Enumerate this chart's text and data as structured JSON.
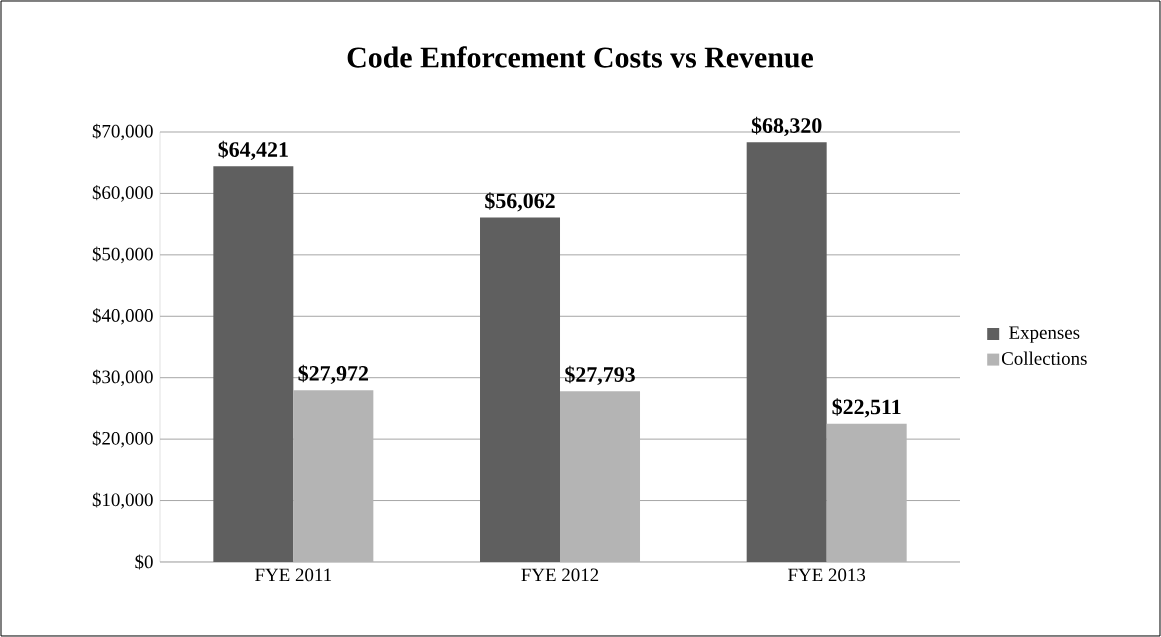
{
  "chart_data": {
    "type": "bar",
    "title": "Code Enforcement Costs vs Revenue",
    "categories": [
      "FYE 2011",
      "FYE 2012",
      "FYE 2013"
    ],
    "series": [
      {
        "name": "Expenses",
        "color": "#5f5f5f",
        "values": [
          64421,
          56062,
          68320
        ],
        "value_labels": [
          "$64,421",
          "$56,062",
          "$68,320"
        ]
      },
      {
        "name": "Collections",
        "color": "#b4b4b4",
        "values": [
          27972,
          27793,
          22511
        ],
        "value_labels": [
          "$27,972",
          "$27,793",
          "$22,511"
        ]
      }
    ],
    "ylim": [
      0,
      70000
    ],
    "yticks": [
      {
        "value": 0,
        "label": "$0"
      },
      {
        "value": 10000,
        "label": "$10,000"
      },
      {
        "value": 20000,
        "label": "$20,000"
      },
      {
        "value": 30000,
        "label": "$30,000"
      },
      {
        "value": 40000,
        "label": "$40,000"
      },
      {
        "value": 50000,
        "label": "$50,000"
      },
      {
        "value": 60000,
        "label": "$60,000"
      },
      {
        "value": 70000,
        "label": "$70,000"
      }
    ],
    "grid": "y",
    "legend": "right"
  }
}
